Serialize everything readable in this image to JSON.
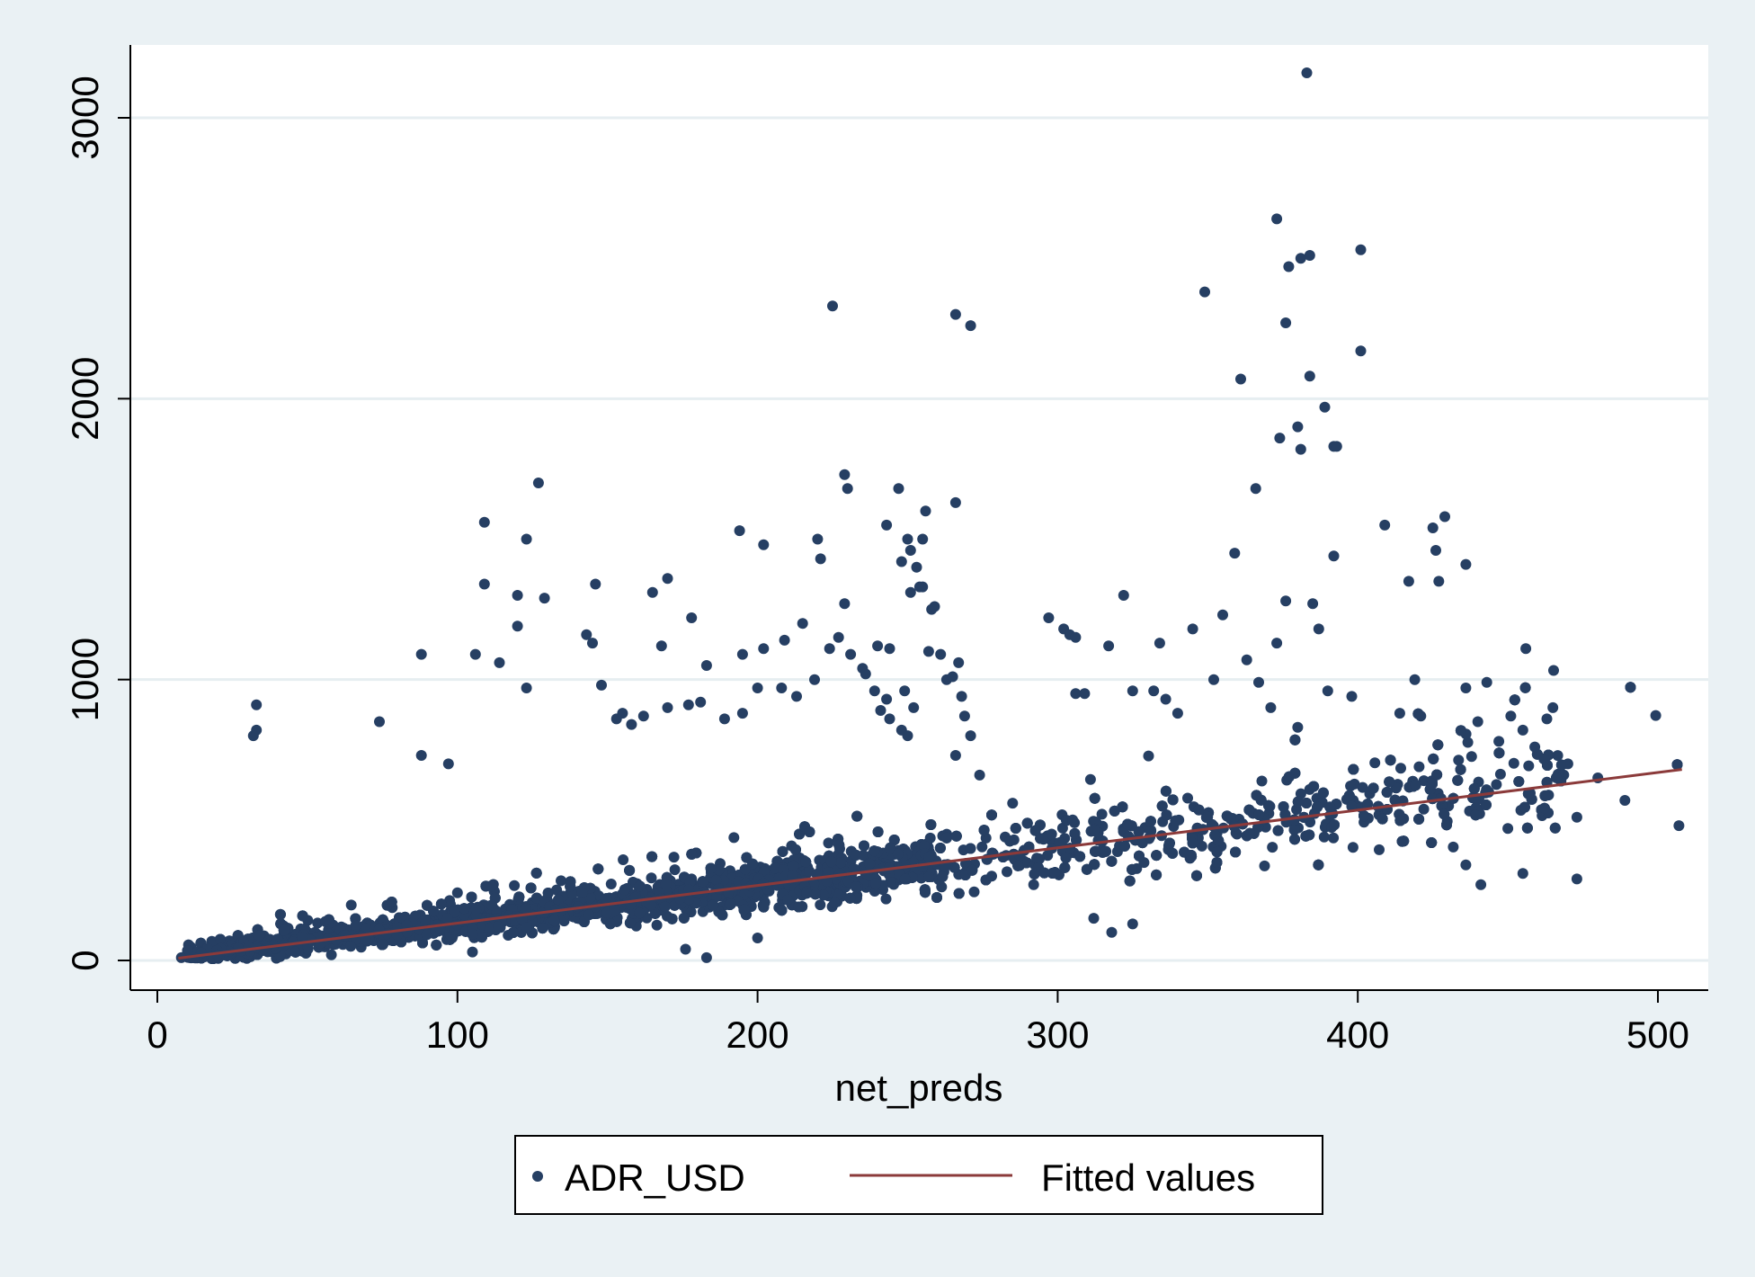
{
  "chart_data": {
    "type": "scatter",
    "title": "",
    "xlabel": "net_preds",
    "ylabel": "",
    "xlim": [
      0,
      515
    ],
    "ylim": [
      -110,
      3250
    ],
    "xticks": [
      0,
      100,
      200,
      300,
      400,
      500
    ],
    "yticks": [
      0,
      1000,
      2000,
      3000
    ],
    "xtick_labels": [
      "0",
      "100",
      "200",
      "300",
      "400",
      "500"
    ],
    "ytick_labels": [
      "0",
      "1000",
      "2000",
      "3000"
    ],
    "grid": "horizontal",
    "legend_position": "bottom",
    "colors": {
      "points": "#263f63",
      "fit": "#8b3a3a",
      "grid": "#e6eef1",
      "plot_bg": "#ffffff",
      "page_bg": "#eaf1f4"
    },
    "series": [
      {
        "name": "ADR_USD",
        "type": "scatter",
        "points": [
          [
            383,
            3160
          ],
          [
            373,
            2640
          ],
          [
            384,
            2510
          ],
          [
            381,
            2500
          ],
          [
            377,
            2470
          ],
          [
            401,
            2530
          ],
          [
            349,
            2380
          ],
          [
            376,
            2270
          ],
          [
            401,
            2170
          ],
          [
            384,
            2080
          ],
          [
            361,
            2070
          ],
          [
            389,
            1970
          ],
          [
            380,
            1900
          ],
          [
            374,
            1860
          ],
          [
            381,
            1820
          ],
          [
            392,
            1830
          ],
          [
            393,
            1830
          ],
          [
            366,
            1680
          ],
          [
            225,
            2330
          ],
          [
            266,
            2300
          ],
          [
            271,
            2260
          ],
          [
            127,
            1700
          ],
          [
            229,
            1730
          ],
          [
            230,
            1680
          ],
          [
            247,
            1680
          ],
          [
            266,
            1630
          ],
          [
            109,
            1560
          ],
          [
            123,
            1500
          ],
          [
            194,
            1530
          ],
          [
            202,
            1480
          ],
          [
            220,
            1500
          ],
          [
            248,
            1420
          ],
          [
            251,
            1460
          ],
          [
            250,
            1500
          ],
          [
            243,
            1550
          ],
          [
            255,
            1500
          ],
          [
            256,
            1600
          ],
          [
            253,
            1400
          ],
          [
            221,
            1430
          ],
          [
            109,
            1340
          ],
          [
            120,
            1300
          ],
          [
            129,
            1290
          ],
          [
            146,
            1340
          ],
          [
            165,
            1310
          ],
          [
            170,
            1360
          ],
          [
            178,
            1220
          ],
          [
            215,
            1200
          ],
          [
            229,
            1270
          ],
          [
            227,
            1150
          ],
          [
            224,
            1110
          ],
          [
            231,
            1090
          ],
          [
            235,
            1040
          ],
          [
            236,
            1020
          ],
          [
            239,
            960
          ],
          [
            241,
            890
          ],
          [
            243,
            930
          ],
          [
            249,
            960
          ],
          [
            244,
            860
          ],
          [
            248,
            820
          ],
          [
            250,
            800
          ],
          [
            252,
            900
          ],
          [
            257,
            1100
          ],
          [
            258,
            1250
          ],
          [
            259,
            1260
          ],
          [
            261,
            1090
          ],
          [
            263,
            1000
          ],
          [
            265,
            1010
          ],
          [
            267,
            1060
          ],
          [
            268,
            940
          ],
          [
            269,
            870
          ],
          [
            266,
            730
          ],
          [
            271,
            800
          ],
          [
            274,
            660
          ],
          [
            251,
            1310
          ],
          [
            254,
            1330
          ],
          [
            255,
            1330
          ],
          [
            244,
            1110
          ],
          [
            240,
            1120
          ],
          [
            88,
            1090
          ],
          [
            106,
            1090
          ],
          [
            114,
            1060
          ],
          [
            120,
            1190
          ],
          [
            143,
            1160
          ],
          [
            145,
            1130
          ],
          [
            168,
            1120
          ],
          [
            183,
            1050
          ],
          [
            195,
            1090
          ],
          [
            202,
            1110
          ],
          [
            209,
            1140
          ],
          [
            33,
            910
          ],
          [
            33,
            820
          ],
          [
            32,
            800
          ],
          [
            74,
            850
          ],
          [
            88,
            730
          ],
          [
            97,
            700
          ],
          [
            123,
            970
          ],
          [
            148,
            980
          ],
          [
            153,
            860
          ],
          [
            155,
            880
          ],
          [
            158,
            840
          ],
          [
            162,
            870
          ],
          [
            170,
            900
          ],
          [
            177,
            910
          ],
          [
            181,
            920
          ],
          [
            189,
            860
          ],
          [
            195,
            880
          ],
          [
            200,
            970
          ],
          [
            208,
            970
          ],
          [
            213,
            940
          ],
          [
            219,
            1000
          ],
          [
            297,
            1220
          ],
          [
            302,
            1180
          ],
          [
            304,
            1160
          ],
          [
            306,
            1150
          ],
          [
            322,
            1300
          ],
          [
            334,
            1130
          ],
          [
            345,
            1180
          ],
          [
            352,
            1000
          ],
          [
            355,
            1230
          ],
          [
            359,
            1450
          ],
          [
            363,
            1070
          ],
          [
            367,
            990
          ],
          [
            373,
            1130
          ],
          [
            376,
            1280
          ],
          [
            385,
            1270
          ],
          [
            387,
            1180
          ],
          [
            392,
            1440
          ],
          [
            409,
            1550
          ],
          [
            417,
            1350
          ],
          [
            419,
            1000
          ],
          [
            425,
            1540
          ],
          [
            426,
            1460
          ],
          [
            427,
            1350
          ],
          [
            429,
            1580
          ],
          [
            436,
            1410
          ],
          [
            436,
            970
          ],
          [
            443,
            990
          ],
          [
            456,
            1110
          ],
          [
            306,
            950
          ],
          [
            309,
            950
          ],
          [
            317,
            1120
          ],
          [
            325,
            960
          ],
          [
            332,
            960
          ],
          [
            336,
            930
          ],
          [
            340,
            880
          ],
          [
            371,
            900
          ],
          [
            380,
            830
          ],
          [
            390,
            960
          ],
          [
            398,
            940
          ],
          [
            414,
            880
          ],
          [
            421,
            870
          ],
          [
            440,
            850
          ],
          [
            447,
            780
          ],
          [
            451,
            870
          ],
          [
            455,
            820
          ],
          [
            459,
            760
          ],
          [
            463,
            860
          ],
          [
            465,
            900
          ],
          [
            470,
            700
          ],
          [
            480,
            650
          ],
          [
            489,
            570
          ],
          [
            507,
            480
          ],
          [
            473,
            510
          ],
          [
            473,
            290
          ],
          [
            455,
            310
          ],
          [
            450,
            470
          ],
          [
            441,
            270
          ],
          [
            436,
            340
          ],
          [
            183,
            10
          ],
          [
            200,
            80
          ],
          [
            176,
            40
          ],
          [
            105,
            30
          ],
          [
            58,
            20
          ],
          [
            20,
            20
          ],
          [
            12,
            10
          ],
          [
            8,
            10
          ],
          [
            298,
            450
          ],
          [
            305,
            500
          ],
          [
            285,
            560
          ],
          [
            312,
            150
          ],
          [
            318,
            100
          ],
          [
            325,
            130
          ],
          [
            292,
            270
          ],
          [
            278,
            300
          ]
        ],
        "cloud": {
          "x_range": [
            7,
            510
          ],
          "density": "very dense for net_preds 10-260, thinner 260-470, sparse beyond 470",
          "approx_relation": "ADR_USD rises with net_preds, roughly 1.35 x net_preds, spread widening with x"
        }
      },
      {
        "name": "Fitted values",
        "type": "line",
        "points": [
          [
            7,
            8
          ],
          [
            508,
            680
          ]
        ]
      }
    ]
  }
}
